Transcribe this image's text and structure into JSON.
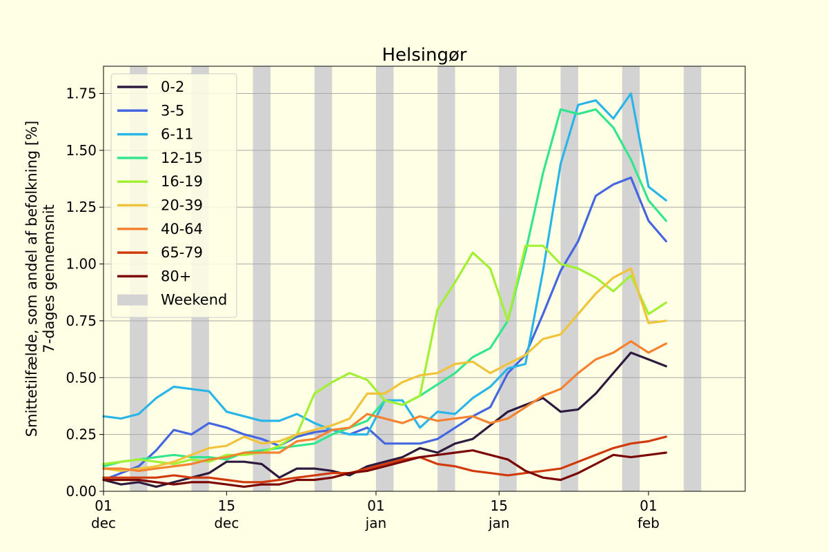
{
  "chart_data": {
    "type": "line",
    "title": "Helsingør",
    "ylabel_line1": "Smittetilfælde, som andel af befolkning [%]",
    "ylabel_line2": "7-dages gennemsnit",
    "xlabel": "",
    "x_start": "2021-12-01",
    "x_end": "2022-02-12",
    "ylim": [
      0,
      1.87
    ],
    "y_ticks": [
      0.0,
      0.25,
      0.5,
      0.75,
      1.0,
      1.25,
      1.5,
      1.75
    ],
    "y_tick_labels": [
      "0.00",
      "0.25",
      "0.50",
      "0.75",
      "1.00",
      "1.25",
      "1.50",
      "1.75"
    ],
    "x_ticks": [
      {
        "date": "2021-12-01",
        "day": "01",
        "month": "dec"
      },
      {
        "date": "2021-12-15",
        "day": "15",
        "month": "dec"
      },
      {
        "date": "2022-01-01",
        "day": "01",
        "month": "jan"
      },
      {
        "date": "2022-01-15",
        "day": "15",
        "month": "jan"
      },
      {
        "date": "2022-02-01",
        "day": "01",
        "month": "feb"
      }
    ],
    "grid": "horizontal",
    "legend_position": "top-left",
    "weekend_label": "Weekend",
    "weekend_color": "#d3d3d3",
    "weekends": [
      [
        "2021-12-04",
        "2021-12-06"
      ],
      [
        "2021-12-11",
        "2021-12-13"
      ],
      [
        "2021-12-18",
        "2021-12-20"
      ],
      [
        "2021-12-25",
        "2021-12-27"
      ],
      [
        "2022-01-01",
        "2022-01-03"
      ],
      [
        "2022-01-08",
        "2022-01-10"
      ],
      [
        "2022-01-15",
        "2022-01-17"
      ],
      [
        "2022-01-22",
        "2022-01-24"
      ],
      [
        "2022-01-29",
        "2022-01-31"
      ],
      [
        "2022-02-05",
        "2022-02-07"
      ]
    ],
    "dates": [
      "2021-12-01",
      "2021-12-03",
      "2021-12-05",
      "2021-12-07",
      "2021-12-09",
      "2021-12-11",
      "2021-12-13",
      "2021-12-15",
      "2021-12-17",
      "2021-12-19",
      "2021-12-21",
      "2021-12-23",
      "2021-12-25",
      "2021-12-27",
      "2021-12-29",
      "2021-12-31",
      "2022-01-02",
      "2022-01-04",
      "2022-01-06",
      "2022-01-08",
      "2022-01-10",
      "2022-01-12",
      "2022-01-14",
      "2022-01-16",
      "2022-01-18",
      "2022-01-20",
      "2022-01-22",
      "2022-01-24",
      "2022-01-26",
      "2022-01-28",
      "2022-01-30",
      "2022-02-01",
      "2022-02-03"
    ],
    "series": [
      {
        "name": "0-2",
        "color": "#2d1a3e",
        "values": [
          0.05,
          0.03,
          0.04,
          0.02,
          0.04,
          0.06,
          0.08,
          0.13,
          0.13,
          0.12,
          0.06,
          0.1,
          0.1,
          0.09,
          0.07,
          0.11,
          0.13,
          0.15,
          0.19,
          0.17,
          0.21,
          0.23,
          0.29,
          0.35,
          0.38,
          0.41,
          0.35,
          0.36,
          0.43,
          0.52,
          0.61,
          0.58,
          0.55
        ]
      },
      {
        "name": "3-5",
        "color": "#4466e0",
        "values": [
          0.05,
          0.08,
          0.11,
          0.18,
          0.27,
          0.25,
          0.3,
          0.28,
          0.25,
          0.23,
          0.2,
          0.24,
          0.26,
          0.27,
          0.25,
          0.28,
          0.21,
          0.21,
          0.21,
          0.23,
          0.28,
          0.33,
          0.37,
          0.52,
          0.6,
          0.78,
          0.97,
          1.1,
          1.3,
          1.35,
          1.38,
          1.19,
          1.1
        ]
      },
      {
        "name": "6-11",
        "color": "#2ab5e8",
        "values": [
          0.33,
          0.32,
          0.34,
          0.41,
          0.46,
          0.45,
          0.44,
          0.35,
          0.33,
          0.31,
          0.31,
          0.34,
          0.3,
          0.27,
          0.25,
          0.25,
          0.4,
          0.4,
          0.28,
          0.35,
          0.34,
          0.41,
          0.46,
          0.54,
          0.56,
          0.97,
          1.44,
          1.7,
          1.72,
          1.64,
          1.75,
          1.34,
          1.28
        ]
      },
      {
        "name": "12-15",
        "color": "#33e68e",
        "values": [
          0.11,
          0.13,
          0.14,
          0.15,
          0.16,
          0.15,
          0.15,
          0.14,
          0.17,
          0.18,
          0.19,
          0.2,
          0.21,
          0.25,
          0.28,
          0.31,
          0.4,
          0.38,
          0.42,
          0.47,
          0.52,
          0.59,
          0.63,
          0.75,
          1.05,
          1.4,
          1.68,
          1.66,
          1.68,
          1.6,
          1.46,
          1.28,
          1.19
        ]
      },
      {
        "name": "16-19",
        "color": "#a2f034",
        "values": [
          0.12,
          0.13,
          0.14,
          0.13,
          0.12,
          0.14,
          0.13,
          0.16,
          0.16,
          0.17,
          0.2,
          0.25,
          0.43,
          0.48,
          0.52,
          0.49,
          0.4,
          0.38,
          0.42,
          0.8,
          0.92,
          1.05,
          0.98,
          0.75,
          1.08,
          1.08,
          1.0,
          0.98,
          0.94,
          0.88,
          0.95,
          0.78,
          0.83
        ]
      },
      {
        "name": "20-39",
        "color": "#f0c43a",
        "values": [
          0.1,
          0.09,
          0.1,
          0.11,
          0.13,
          0.16,
          0.19,
          0.2,
          0.24,
          0.21,
          0.22,
          0.25,
          0.27,
          0.29,
          0.32,
          0.43,
          0.43,
          0.48,
          0.51,
          0.52,
          0.56,
          0.57,
          0.52,
          0.56,
          0.6,
          0.67,
          0.69,
          0.78,
          0.87,
          0.94,
          0.98,
          0.74,
          0.75
        ]
      },
      {
        "name": "40-64",
        "color": "#f58230",
        "values": [
          0.1,
          0.1,
          0.09,
          0.1,
          0.11,
          0.12,
          0.14,
          0.15,
          0.17,
          0.17,
          0.17,
          0.22,
          0.23,
          0.27,
          0.28,
          0.34,
          0.32,
          0.3,
          0.33,
          0.31,
          0.32,
          0.33,
          0.3,
          0.32,
          0.37,
          0.42,
          0.45,
          0.52,
          0.58,
          0.61,
          0.66,
          0.61,
          0.65
        ]
      },
      {
        "name": "65-79",
        "color": "#d03a0c",
        "values": [
          0.06,
          0.06,
          0.06,
          0.06,
          0.07,
          0.06,
          0.06,
          0.05,
          0.04,
          0.04,
          0.05,
          0.06,
          0.07,
          0.08,
          0.08,
          0.1,
          0.12,
          0.14,
          0.15,
          0.12,
          0.11,
          0.09,
          0.08,
          0.07,
          0.08,
          0.09,
          0.1,
          0.13,
          0.16,
          0.19,
          0.21,
          0.22,
          0.24
        ]
      },
      {
        "name": "80+",
        "color": "#7a0403",
        "values": [
          0.05,
          0.05,
          0.05,
          0.04,
          0.03,
          0.04,
          0.04,
          0.03,
          0.02,
          0.03,
          0.03,
          0.05,
          0.05,
          0.06,
          0.08,
          0.09,
          0.11,
          0.13,
          0.15,
          0.16,
          0.17,
          0.18,
          0.16,
          0.14,
          0.09,
          0.06,
          0.05,
          0.08,
          0.12,
          0.16,
          0.15,
          0.16,
          0.17
        ]
      }
    ]
  }
}
